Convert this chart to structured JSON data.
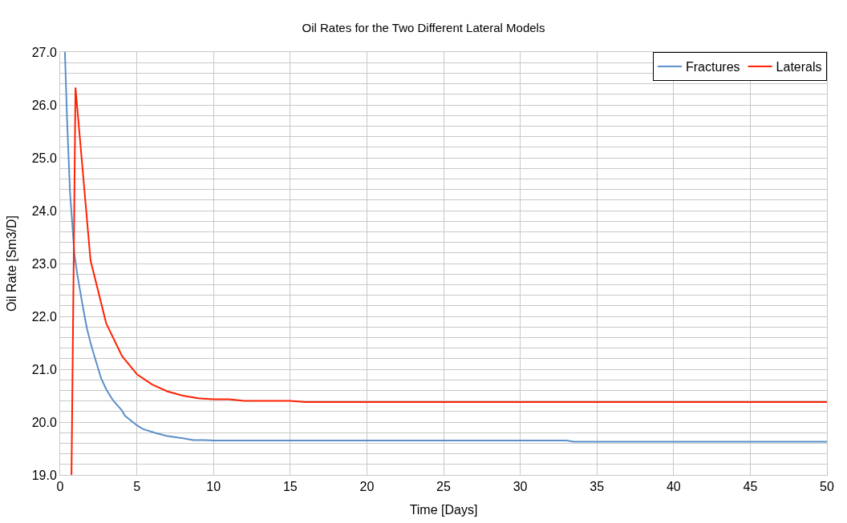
{
  "chart_data": {
    "type": "line",
    "title": "Oil Rates for the Two Different Lateral Models",
    "xlabel": "Time [Days]",
    "ylabel": "Oil Rate [Sm3/D]",
    "series": [
      {
        "name": "Fractures",
        "color": "#5b8fc9",
        "x": [
          0.31,
          0.45,
          0.64,
          0.93,
          1.12,
          1.47,
          1.74,
          1.98,
          2.23,
          2.67,
          3.02,
          3.45,
          4.03,
          4.22,
          5.0,
          5.39,
          6.16,
          6.94,
          8.1,
          8.68,
          9.46,
          10,
          15,
          20,
          25,
          30,
          33,
          33.5,
          40,
          45,
          50
        ],
        "values": [
          27.0,
          25.73,
          24.36,
          23.18,
          22.79,
          22.2,
          21.78,
          21.5,
          21.25,
          20.83,
          20.61,
          20.41,
          20.22,
          20.12,
          19.94,
          19.87,
          19.8,
          19.74,
          19.69,
          19.66,
          19.66,
          19.65,
          19.65,
          19.65,
          19.65,
          19.65,
          19.65,
          19.63,
          19.63,
          19.63,
          19.63
        ]
      },
      {
        "name": "Laterals",
        "color": "#ff2000",
        "x": [
          0.74,
          1.0,
          1.98,
          3.0,
          4.03,
          5.02,
          6.0,
          7.0,
          8.0,
          9.0,
          10,
          11,
          12,
          15,
          16,
          20,
          30,
          40,
          50
        ],
        "values": [
          19.0,
          26.33,
          23.06,
          21.87,
          21.25,
          20.9,
          20.71,
          20.58,
          20.5,
          20.45,
          20.43,
          20.43,
          20.4,
          20.4,
          20.38,
          20.38,
          20.38,
          20.38,
          20.38
        ]
      }
    ],
    "xlim": [
      0,
      50
    ],
    "xticks": [
      0,
      5,
      10,
      15,
      20,
      25,
      30,
      35,
      40,
      45,
      50
    ],
    "ylim": [
      19,
      27
    ],
    "yticks": [
      {
        "value": 19,
        "label": "19.0"
      },
      {
        "value": 19.2,
        "label": null
      },
      {
        "value": 19.4,
        "label": null
      },
      {
        "value": 19.6,
        "label": null
      },
      {
        "value": 19.8,
        "label": null
      },
      {
        "value": 20,
        "label": "20.0"
      },
      {
        "value": 20.2,
        "label": null
      },
      {
        "value": 20.4,
        "label": null
      },
      {
        "value": 20.6,
        "label": null
      },
      {
        "value": 20.8,
        "label": null
      },
      {
        "value": 21,
        "label": "21.0"
      },
      {
        "value": 21.2,
        "label": null
      },
      {
        "value": 21.4,
        "label": null
      },
      {
        "value": 21.6,
        "label": null
      },
      {
        "value": 21.8,
        "label": null
      },
      {
        "value": 22,
        "label": "22.0"
      },
      {
        "value": 22.2,
        "label": null
      },
      {
        "value": 22.4,
        "label": null
      },
      {
        "value": 22.6,
        "label": null
      },
      {
        "value": 22.8,
        "label": null
      },
      {
        "value": 23,
        "label": "23.0"
      },
      {
        "value": 23.2,
        "label": null
      },
      {
        "value": 23.4,
        "label": null
      },
      {
        "value": 23.6,
        "label": null
      },
      {
        "value": 23.8,
        "label": null
      },
      {
        "value": 24,
        "label": "24.0"
      },
      {
        "value": 24.2,
        "label": null
      },
      {
        "value": 24.4,
        "label": null
      },
      {
        "value": 24.6,
        "label": null
      },
      {
        "value": 24.8,
        "label": null
      },
      {
        "value": 25,
        "label": "25.0"
      },
      {
        "value": 25.2,
        "label": null
      },
      {
        "value": 25.4,
        "label": null
      },
      {
        "value": 25.6,
        "label": null
      },
      {
        "value": 25.8,
        "label": null
      },
      {
        "value": 26,
        "label": "26.0"
      },
      {
        "value": 26.2,
        "label": null
      },
      {
        "value": 26.4,
        "label": null
      },
      {
        "value": 26.6,
        "label": null
      },
      {
        "value": 26.8,
        "label": null
      },
      {
        "value": 27,
        "label": "27.0"
      }
    ],
    "grid": true,
    "legend": "top right",
    "marker": "none",
    "line_style": "solid"
  }
}
